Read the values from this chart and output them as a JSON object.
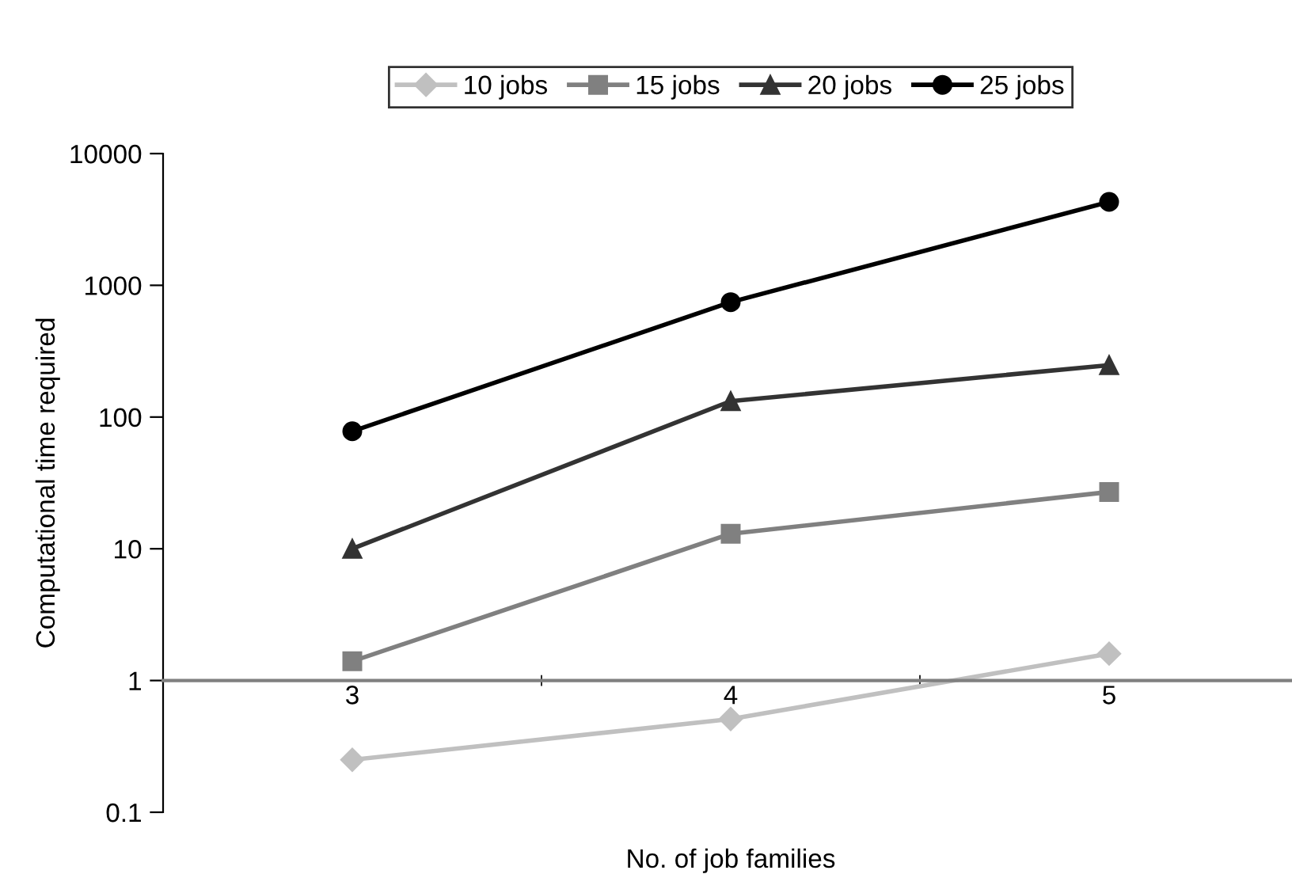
{
  "chart_data": {
    "type": "line",
    "xlabel": "No. of job families",
    "ylabel": "Computational time required",
    "categories": [
      "3",
      "4",
      "5"
    ],
    "series": [
      {
        "name": "10 jobs",
        "color": "#c0c0c0",
        "marker": "diamond",
        "values": [
          0.25,
          0.51,
          1.6
        ]
      },
      {
        "name": "15 jobs",
        "color": "#808080",
        "marker": "square",
        "values": [
          1.4,
          13,
          27
        ]
      },
      {
        "name": "20 jobs",
        "color": "#333333",
        "marker": "triangle",
        "values": [
          10,
          132,
          248
        ]
      },
      {
        "name": "25 jobs",
        "color": "#000000",
        "marker": "circle",
        "values": [
          78,
          745,
          4300
        ]
      }
    ],
    "log": "y",
    "ylim": [
      0.1,
      10000
    ],
    "yticks": [
      0.1,
      1,
      10,
      100,
      1000,
      10000
    ],
    "grid": false,
    "legend": "top",
    "line_style": "solid"
  }
}
